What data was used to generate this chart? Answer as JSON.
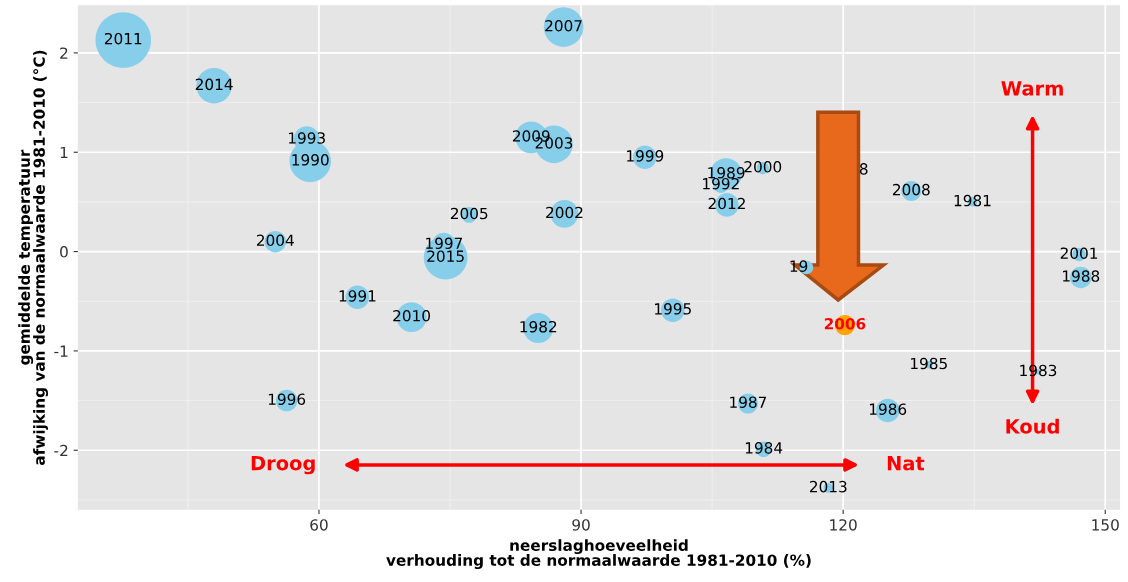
{
  "chart_data": {
    "type": "bubble",
    "xlabel": "neerslaghoeveelheid\nverhouding tot de normaalwaarde 1981-2010 (%)",
    "ylabel": "gemiddelde temperatuur\nafwijking van de normaalwaarde 1981-2010 (°C)",
    "xlim": [
      32.4,
      151.7
    ],
    "ylim": [
      -2.6,
      2.48
    ],
    "xticks": [
      60,
      90,
      120,
      150
    ],
    "yticks": [
      -2,
      -1,
      0,
      1,
      2
    ],
    "grid": true,
    "series": [
      {
        "color": "#87ceeb",
        "x": [
          37.6,
          48.0,
          58.6,
          59.0,
          55.0,
          74.3,
          74.5,
          77.2,
          64.4,
          70.6,
          56.3,
          88.0,
          84.3,
          86.9,
          97.3,
          88.1,
          85.1,
          100.5,
          106.6,
          110.8,
          106.0,
          106.7,
          109.1,
          110.9,
          115.8,
          120.2,
          127.8,
          134.8,
          147.0,
          147.2,
          129.8,
          142.3,
          125.1,
          118.3
        ],
        "values": [
          2.13,
          1.67,
          1.13,
          0.91,
          0.1,
          0.07,
          -0.06,
          0.37,
          -0.46,
          -0.66,
          -1.5,
          2.26,
          1.15,
          1.08,
          0.95,
          0.38,
          -0.77,
          -0.59,
          0.78,
          0.84,
          0.67,
          0.47,
          -1.53,
          -1.99,
          -0.16,
          -0.74,
          0.61,
          0.5,
          -0.03,
          -0.26,
          -1.14,
          -1.21,
          -1.6,
          -2.38
        ],
        "sizes": [
          1.0,
          0.41,
          0.22,
          0.56,
          0.15,
          0.18,
          0.62,
          0.08,
          0.18,
          0.29,
          0.15,
          0.51,
          0.33,
          0.46,
          0.18,
          0.25,
          0.29,
          0.18,
          0.33,
          0.05,
          0.08,
          0.18,
          0.13,
          0.08,
          0.06,
          0.13,
          0.13,
          0.03,
          0.06,
          0.15,
          0.02,
          0.01,
          0.18,
          0.03
        ],
        "colors": [
          "#87ceeb",
          "#87ceeb",
          "#87ceeb",
          "#87ceeb",
          "#87ceeb",
          "#87ceeb",
          "#87ceeb",
          "#87ceeb",
          "#87ceeb",
          "#87ceeb",
          "#87ceeb",
          "#87ceeb",
          "#87ceeb",
          "#87ceeb",
          "#87ceeb",
          "#87ceeb",
          "#87ceeb",
          "#87ceeb",
          "#87ceeb",
          "#87ceeb",
          "#87ceeb",
          "#87ceeb",
          "#87ceeb",
          "#87ceeb",
          "#87ceeb",
          "#ffa500",
          "#87ceeb",
          "#87ceeb",
          "#87ceeb",
          "#87ceeb",
          "#87ceeb",
          "#87ceeb",
          "#87ceeb",
          "#87ceeb"
        ]
      }
    ],
    "annotations": [
      "Droog",
      "Nat",
      "Warm",
      "Koud",
      {
        "text": "2011",
        "x": 37.6,
        "y": 2.13
      },
      {
        "text": "2014",
        "x": 48.0,
        "y": 1.67
      },
      {
        "text": "1993",
        "x": 58.6,
        "y": 1.13
      },
      {
        "text": "1990",
        "x": 59.0,
        "y": 0.91
      },
      {
        "text": "2004",
        "x": 55.0,
        "y": 0.1
      },
      {
        "text": "1997",
        "x": 74.3,
        "y": 0.07
      },
      {
        "text": "2015",
        "x": 74.5,
        "y": -0.06
      },
      {
        "text": "2005",
        "x": 77.2,
        "y": 0.37
      },
      {
        "text": "1991",
        "x": 64.4,
        "y": -0.46
      },
      {
        "text": "2010",
        "x": 70.6,
        "y": -0.66
      },
      {
        "text": "1996",
        "x": 56.3,
        "y": -1.5
      },
      {
        "text": "2007",
        "x": 88.0,
        "y": 2.26
      },
      {
        "text": "2009",
        "x": 84.3,
        "y": 1.15
      },
      {
        "text": "2003",
        "x": 86.9,
        "y": 1.08
      },
      {
        "text": "1999",
        "x": 97.3,
        "y": 0.95
      },
      {
        "text": "2002",
        "x": 88.1,
        "y": 0.38
      },
      {
        "text": "1982",
        "x": 85.1,
        "y": -0.77
      },
      {
        "text": "1995",
        "x": 100.5,
        "y": -0.59
      },
      {
        "text": "1989",
        "x": 106.6,
        "y": 0.78
      },
      {
        "text": "2000",
        "x": 110.8,
        "y": 0.84
      },
      {
        "text": "1992",
        "x": 106.0,
        "y": 0.67
      },
      {
        "text": "2012",
        "x": 106.7,
        "y": 0.47
      },
      {
        "text": "1987",
        "x": 109.1,
        "y": -1.53
      },
      {
        "text": "1984",
        "x": 110.9,
        "y": -1.99
      },
      {
        "text": "19",
        "x": 114.9,
        "y": -0.16
      },
      "8",
      {
        "text": "2006",
        "x": 120.2,
        "y": -0.74
      },
      {
        "text": "2008",
        "x": 127.8,
        "y": 0.61
      },
      {
        "text": "1981",
        "x": 134.8,
        "y": 0.5
      },
      {
        "text": "2001",
        "x": 147.0,
        "y": -0.03
      },
      {
        "text": "1988",
        "x": 147.2,
        "y": -0.26
      },
      {
        "text": "1985",
        "x": 129.8,
        "y": -1.14
      },
      {
        "text": "1983",
        "x": 142.3,
        "y": -1.21
      },
      {
        "text": "1986",
        "x": 125.1,
        "y": -1.6
      },
      {
        "text": "2013",
        "x": 118.3,
        "y": -2.38
      }
    ]
  }
}
